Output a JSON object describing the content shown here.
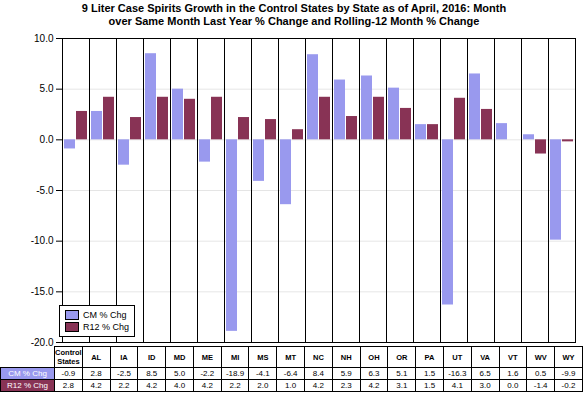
{
  "chart_data": {
    "type": "bar",
    "title": "9 Liter Case Spirits Growth in the Control States by State as of April, 2016: Month\nover Same Month Last Year % Change and Rolling-12 Month % Change",
    "categories": [
      "Control\nStates",
      "AL",
      "IA",
      "ID",
      "MD",
      "ME",
      "MI",
      "MS",
      "MT",
      "NC",
      "NH",
      "OH",
      "OR",
      "PA",
      "UT",
      "VA",
      "VT",
      "WV",
      "WY"
    ],
    "series": [
      {
        "name": "CM % Chg",
        "color": "#9999EE",
        "values": [
          -0.9,
          2.8,
          -2.5,
          8.5,
          5.0,
          -2.2,
          -18.9,
          -4.1,
          -6.4,
          8.4,
          5.9,
          6.3,
          5.1,
          1.5,
          -16.3,
          6.5,
          1.6,
          0.5,
          -9.9
        ],
        "value_labels": [
          "-0.9",
          "2.8",
          "-2.5",
          "8.5",
          "5.0",
          "-2.2",
          "-18.9",
          "-4.1",
          "-6.4",
          "8.4",
          "5.9",
          "6.3",
          "5.1",
          "1.5",
          "-16.3",
          "6.5",
          "1.6",
          "0.5",
          "-9.9"
        ]
      },
      {
        "name": "R12 % Chg",
        "color": "#883355",
        "values": [
          2.8,
          4.2,
          2.2,
          4.2,
          4.0,
          4.2,
          2.2,
          2.0,
          1.0,
          4.2,
          2.3,
          4.2,
          3.1,
          1.5,
          4.1,
          3.0,
          0.0,
          -1.4,
          -0.2
        ],
        "value_labels": [
          "2.8",
          "4.2",
          "2.2",
          "4.2",
          "4.0",
          "4.2",
          "2.2",
          "2.0",
          "1.0",
          "4.2",
          "2.3",
          "4.2",
          "3.1",
          "1.5",
          "4.1",
          "3.0",
          "0.0",
          "-1.4",
          "-0.2"
        ]
      }
    ],
    "ylim": [
      -20.0,
      10.0
    ],
    "yticks": [
      {
        "value": -20.0,
        "label": "-20.0"
      },
      {
        "value": -15.0,
        "label": "-15.0"
      },
      {
        "value": -10.0,
        "label": "-10.0"
      },
      {
        "value": -5.0,
        "label": "-5.0"
      },
      {
        "value": 0.0,
        "label": "0.0"
      },
      {
        "value": 5.0,
        "label": "5.0"
      },
      {
        "value": 10.0,
        "label": "10.0"
      }
    ],
    "grid": true,
    "legend": "lower left",
    "data_labels": true
  }
}
